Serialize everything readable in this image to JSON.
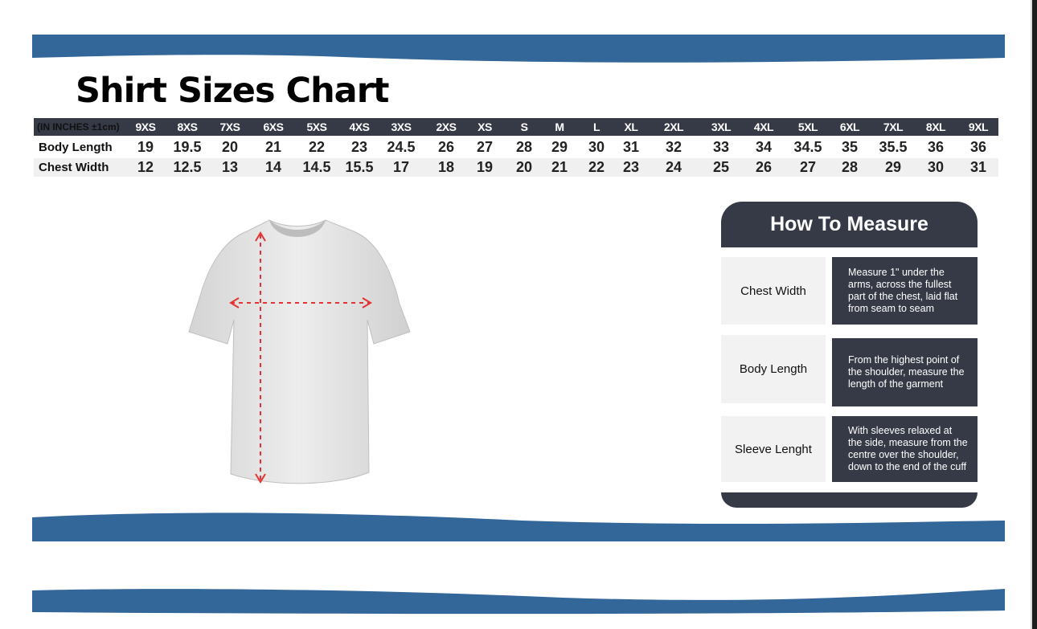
{
  "title": "Shirt Sizes Chart",
  "colors": {
    "band": "#336699",
    "dark": "#363a47",
    "arrow": "#e53333"
  },
  "table": {
    "unit_label": "(IN INCHES ±1cm)",
    "sizes": [
      "9XS",
      "8XS",
      "7XS",
      "6XS",
      "5XS",
      "4XS",
      "3XS",
      "2XS",
      "XS",
      "S",
      "M",
      "L",
      "XL",
      "2XL",
      "3XL",
      "4XL",
      "5XL",
      "6XL",
      "7XL",
      "8XL",
      "9XL"
    ],
    "rows": [
      {
        "label": "Body Length",
        "values": [
          "19",
          "19.5",
          "20",
          "21",
          "22",
          "23",
          "24.5",
          "26",
          "27",
          "28",
          "29",
          "30",
          "31",
          "32",
          "33",
          "34",
          "34.5",
          "35",
          "35.5",
          "36",
          "36"
        ]
      },
      {
        "label": "Chest Width",
        "values": [
          "12",
          "12.5",
          "13",
          "14",
          "14.5",
          "15.5",
          "17",
          "18",
          "19",
          "20",
          "21",
          "22",
          "23",
          "24",
          "25",
          "26",
          "27",
          "28",
          "29",
          "30",
          "31"
        ]
      }
    ]
  },
  "measure": {
    "title": "How To Measure",
    "items": [
      {
        "label": "Chest Width",
        "desc": "Measure 1\" under the arms, across the fullest part of the chest, laid flat from seam to seam"
      },
      {
        "label": "Body Length",
        "desc": "From the highest point of the shoulder, measure the length of the garment"
      },
      {
        "label": "Sleeve Lenght",
        "desc": "With sleeves relaxed at the side,  measure from the centre over the shoulder, down to the end of the cuff"
      }
    ]
  }
}
